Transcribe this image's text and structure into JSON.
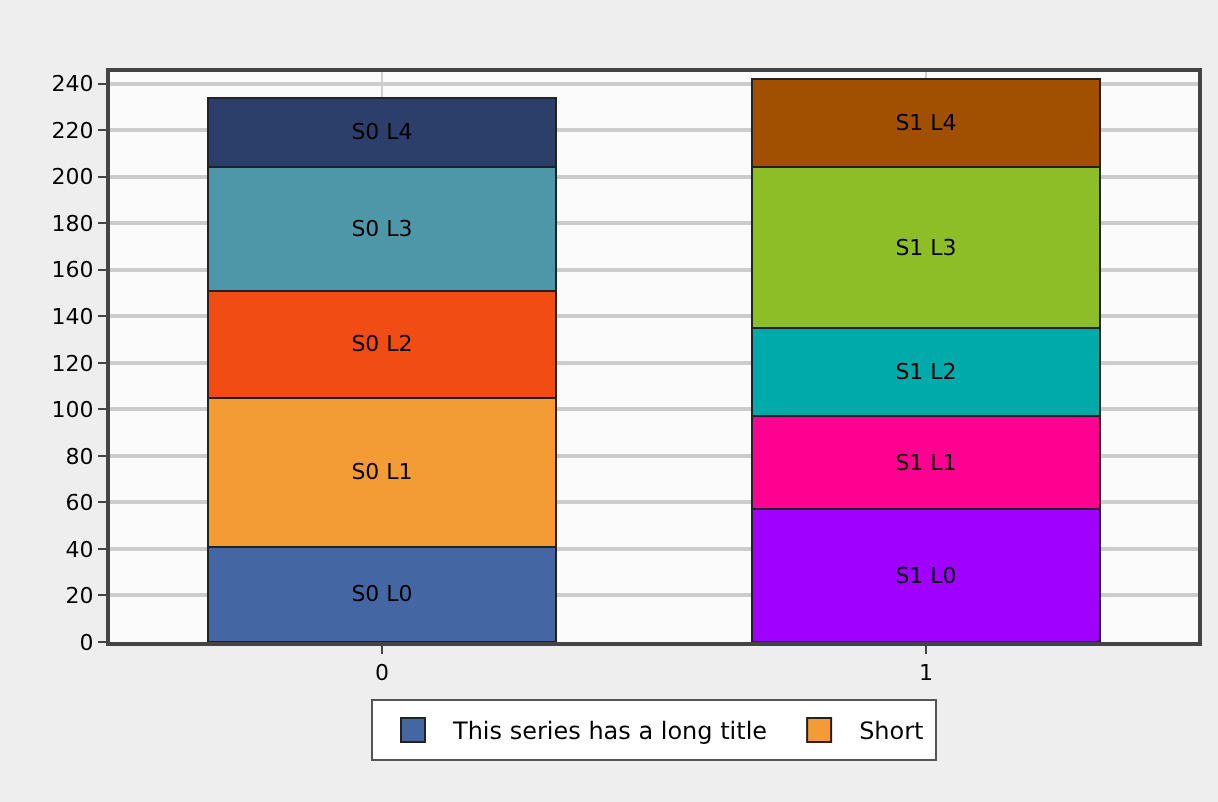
{
  "chart_data": {
    "type": "bar",
    "stacked": true,
    "categories": [
      "0",
      "1"
    ],
    "series": [
      {
        "name": "This series has a long title",
        "colors": [
          "#4466a3",
          "#a000ff"
        ],
        "values": [
          41,
          57
        ],
        "value_labels": [
          "S0 L0",
          "S1 L0"
        ]
      },
      {
        "name": "Short",
        "colors": [
          "#f39c35",
          "#ff0090"
        ],
        "values": [
          64,
          40
        ],
        "value_labels": [
          "S0 L1",
          "S1 L1"
        ]
      },
      {
        "colors": [
          "#f04c13",
          "#00aaaa"
        ],
        "values": [
          46,
          38
        ],
        "value_labels": [
          "S0 L2",
          "S1 L2"
        ]
      },
      {
        "colors": [
          "#4e97a8",
          "#8dbe28"
        ],
        "values": [
          53,
          69
        ],
        "value_labels": [
          "S0 L3",
          "S1 L3"
        ]
      },
      {
        "colors": [
          "#2c3e6a",
          "#a05000"
        ],
        "values": [
          30,
          38
        ],
        "value_labels": [
          "S0 L4",
          "S1 L4"
        ]
      }
    ],
    "ylim": [
      0,
      245
    ],
    "yticks": [
      0,
      20,
      40,
      60,
      80,
      100,
      120,
      140,
      160,
      180,
      200,
      220,
      240
    ],
    "grid": true,
    "legend": "bottom"
  }
}
